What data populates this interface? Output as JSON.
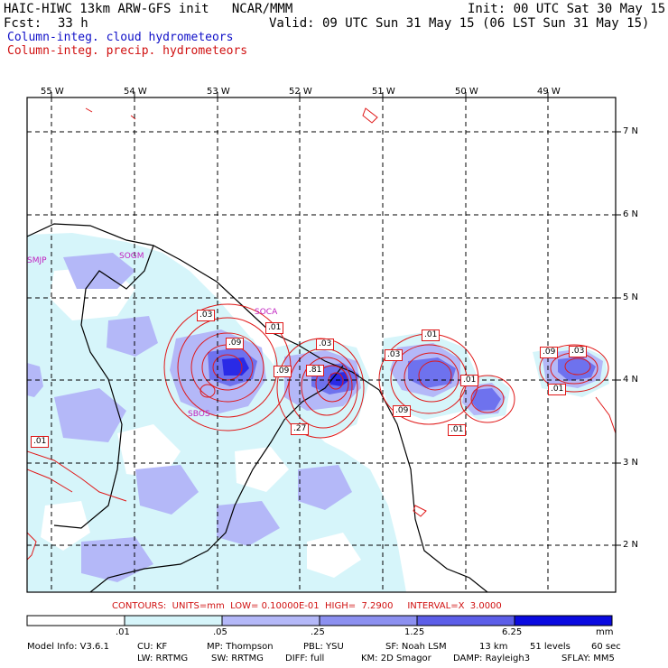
{
  "header": {
    "title": "HAIC-HIWC 13km ARW-GFS init   NCAR/MMM",
    "init": "Init: 00 UTC Sat 30 May 15",
    "fcst_label": "Fcst:",
    "fcst_value": "33 h",
    "valid": "Valid: 09 UTC Sun 31 May 15 (06 LST Sun 31 May 15)",
    "field_cloud": "Column-integ. cloud hydrometeors",
    "field_precip": "Column-integ. precip. hydrometeors"
  },
  "axes": {
    "lon_labels": [
      "55 W",
      "54 W",
      "53 W",
      "52 W",
      "51 W",
      "50 W",
      "49 W"
    ],
    "lat_labels": [
      "7 N",
      "6 N",
      "5 N",
      "4 N",
      "3 N",
      "2 N"
    ]
  },
  "stations": [
    "SMJP",
    "SOGM",
    "SOCA",
    "SBOS"
  ],
  "contour_labels": [
    ".03",
    ".01",
    ".09",
    ".03",
    ".09",
    ".81",
    ".27",
    ".03",
    ".01",
    ".09",
    ".01",
    ".01",
    ".09",
    ".03",
    ".01",
    ".01"
  ],
  "contour_info": "CONTOURS:  UNITS=mm  LOW= 0.10000E-01  HIGH=  7.2900     INTERVAL=X  3.0000",
  "colorbar": {
    "ticks": [
      ".01",
      ".05",
      ".25",
      "1.25",
      "6.25"
    ],
    "units": "mm",
    "colors": [
      "#ffffff",
      "#d6f5fa",
      "#b4b8f8",
      "#8c90f0",
      "#5c5ee8",
      "#2828e6",
      "#0a0ae0"
    ]
  },
  "footer": {
    "line1": [
      "Model Info: V3.6.1",
      "CU: KF",
      "MP: Thompson",
      "PBL: YSU",
      "SF: Noah LSM",
      "13 km",
      "51 levels",
      "60 sec"
    ],
    "line2": [
      "LW: RRTMG",
      "SW: RRTMG",
      "DIFF: full",
      "KM: 2D Smagor",
      "DAMP: Rayleigh3",
      "SFLAY: MM5"
    ]
  },
  "colors": {
    "cloud_light": "#d6f5fa",
    "cloud_mid": "#b4b8f8",
    "cloud_dark": "#8c90f0",
    "cloud_deep": "#2a2ae6",
    "precip": "#e01818",
    "station": "#c020c0"
  }
}
